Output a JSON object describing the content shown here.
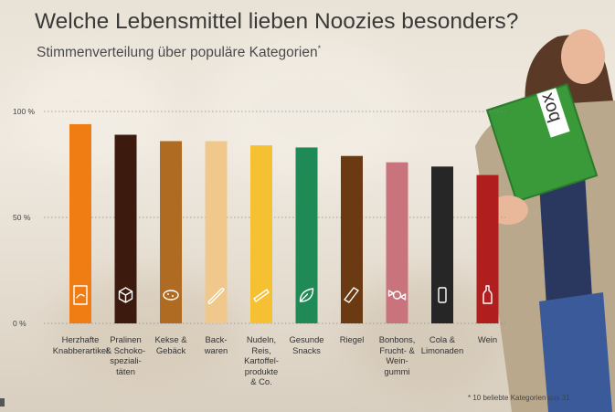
{
  "title": "Welche Lebensmittel lieben Noozies besonders?",
  "subtitle": "Stimmenverteilung über populäre Kategorien",
  "subtitle_mark": "*",
  "footnote": "* 10 beliebte Kategorien aus 31",
  "box_text": "box",
  "chart_data": {
    "type": "bar",
    "title": "Welche Lebensmittel lieben Noozies besonders?",
    "subtitle": "Stimmenverteilung über populäre Kategorien",
    "ylim": [
      0,
      100
    ],
    "y_ticks": [
      "100 %",
      "50 %",
      "0 %"
    ],
    "y_tick_values": [
      100,
      50,
      0
    ],
    "grid": true,
    "categories": [
      [
        "Herzhafte",
        "Knabberartikel"
      ],
      [
        "Pralinen",
        "& Schoko-",
        "speziali-",
        "täten"
      ],
      [
        "Kekse &",
        "Gebäck"
      ],
      [
        "Back-",
        "waren"
      ],
      [
        "Nudeln,",
        "Reis,",
        "Kartoffel-",
        "produkte",
        "& Co."
      ],
      [
        "Gesunde",
        "Snacks"
      ],
      [
        "Riegel"
      ],
      [
        "Bonbons,",
        "Frucht- &",
        "Wein-",
        "gummi"
      ],
      [
        "Cola &",
        "Limonaden"
      ],
      [
        "Wein"
      ]
    ],
    "values": [
      94,
      89,
      86,
      86,
      84,
      83,
      79,
      76,
      74,
      70
    ],
    "colors": [
      "#f07d14",
      "#3d1a0e",
      "#b06b23",
      "#f1c88c",
      "#f6c033",
      "#1f8a55",
      "#6b3a13",
      "#c9737c",
      "#262626",
      "#b01e1e"
    ],
    "icons": [
      "chips-bag-icon",
      "praline-cube-icon",
      "cookie-icon",
      "baguette-icon",
      "pasta-icon",
      "leaf-icon",
      "bar-icon",
      "candy-icon",
      "can-icon",
      "wine-bottle-icon"
    ]
  }
}
